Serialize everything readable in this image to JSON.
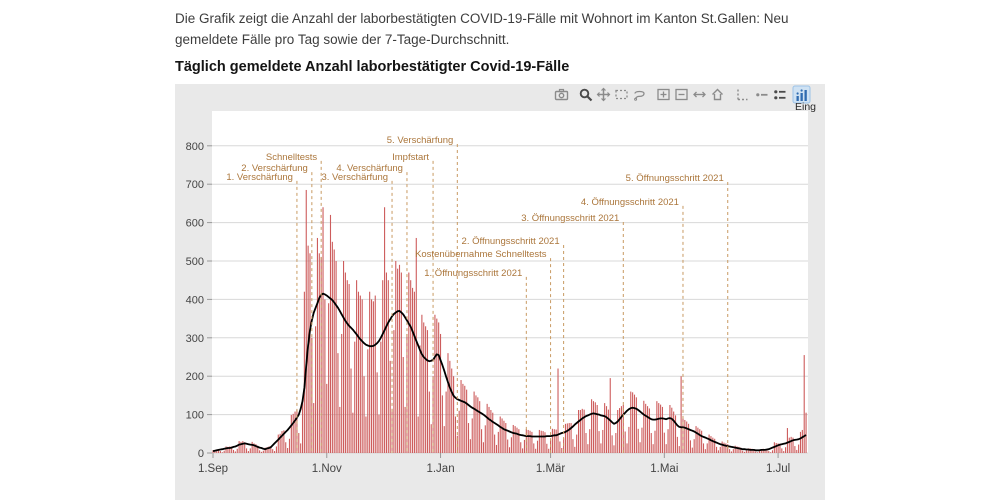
{
  "page": {
    "intro_line1": "Die Grafik zeigt die Anzahl der laborbestätigten COVID-19-Fälle mit Wohnort im Kanton St.Gallen: Neu",
    "intro_line2": "gemeldete Fälle pro Tag sowie der 7-Tage-Durchschnitt.",
    "title": "Täglich gemeldete Anzahl laborbestätigter Covid-19-Fälle"
  },
  "modebar": {
    "icons": [
      {
        "name": "camera"
      },
      {
        "name": "zoom",
        "emph": true
      },
      {
        "name": "pan"
      },
      {
        "name": "box-select"
      },
      {
        "name": "lasso-select"
      },
      {
        "name": "zoom-in"
      },
      {
        "name": "zoom-out"
      },
      {
        "name": "autoscale"
      },
      {
        "name": "reset-home"
      },
      {
        "name": "toggle-spikelines"
      },
      {
        "name": "hover-closest"
      },
      {
        "name": "hover-compare",
        "emph": true
      },
      {
        "name": "plotly-logo",
        "active": true
      }
    ],
    "tooltip_text": "Eing"
  },
  "chart_data": {
    "type": "bar",
    "title": "Täglich gemeldete Anzahl laborbestätigter Covid-19-Fälle",
    "xlabel": "",
    "ylabel": "",
    "x_unit": "days since 1.Sep 2020",
    "x_start_day": 0,
    "x_end_day": 318,
    "x_ticks": {
      "days": [
        0,
        61,
        122,
        181,
        242,
        303
      ],
      "labels": [
        "1.Sep",
        "1.Nov",
        "1.Jan",
        "1.Mär",
        "1.Mai",
        "1.Jul"
      ]
    },
    "ylim": [
      0,
      850
    ],
    "yticks": [
      0,
      100,
      200,
      300,
      400,
      500,
      600,
      700,
      800
    ],
    "grid": true,
    "legend": "none",
    "series": [
      {
        "name": "Neu gemeldete Fälle pro Tag",
        "type": "bar",
        "color": "#cd5c5c",
        "values": [
          7,
          8,
          9,
          10,
          5,
          2,
          6,
          17,
          16,
          17,
          17,
          8,
          4,
          11,
          31,
          29,
          31,
          28,
          12,
          5,
          12,
          29,
          25,
          23,
          19,
          7,
          3,
          6,
          14,
          15,
          17,
          18,
          10,
          5,
          17,
          48,
          50,
          57,
          59,
          28,
          13,
          37,
          99,
          102,
          108,
          113,
          52,
          25,
          140,
          420,
          685,
          540,
          520,
          300,
          130,
          330,
          560,
          520,
          510,
          640,
          400,
          180,
          390,
          620,
          550,
          530,
          500,
          260,
          120,
          310,
          500,
          470,
          450,
          440,
          220,
          105,
          290,
          450,
          420,
          410,
          400,
          200,
          95,
          270,
          420,
          400,
          395,
          410,
          210,
          100,
          290,
          450,
          640,
          470,
          450,
          240,
          115,
          320,
          500,
          480,
          490,
          470,
          250,
          120,
          310,
          470,
          450,
          430,
          420,
          560,
          95,
          280,
          360,
          340,
          330,
          320,
          160,
          75,
          200,
          360,
          350,
          340,
          310,
          150,
          70,
          160,
          260,
          240,
          220,
          200,
          95,
          45,
          110,
          190,
          180,
          175,
          165,
          78,
          36,
          90,
          160,
          150,
          145,
          135,
          62,
          28,
          72,
          128,
          120,
          112,
          105,
          48,
          21,
          55,
          95,
          90,
          84,
          78,
          35,
          15,
          41,
          73,
          70,
          66,
          62,
          28,
          12,
          34,
          62,
          60,
          58,
          55,
          25,
          11,
          32,
          60,
          58,
          57,
          54,
          24,
          11,
          33,
          63,
          62,
          61,
          220,
          30,
          13,
          38,
          76,
          77,
          78,
          78,
          36,
          16,
          48,
          112,
          112,
          115,
          113,
          52,
          23,
          62,
          140,
          135,
          132,
          125,
          57,
          25,
          60,
          130,
          122,
          113,
          195,
          46,
          20,
          52,
          112,
          117,
          122,
          125,
          56,
          25,
          68,
          160,
          158,
          152,
          145,
          63,
          28,
          66,
          136,
          128,
          122,
          116,
          52,
          23,
          58,
          135,
          130,
          126,
          120,
          53,
          23,
          62,
          125,
          118,
          108,
          98,
          42,
          18,
          200,
          90,
          86,
          82,
          76,
          33,
          14,
          36,
          70,
          66,
          62,
          58,
          25,
          10,
          25,
          48,
          44,
          40,
          37,
          16,
          7,
          16,
          30,
          27,
          25,
          23,
          10,
          4,
          10,
          19,
          17,
          16,
          14,
          6,
          3,
          7,
          12,
          12,
          11,
          10,
          4,
          2,
          5,
          10,
          11,
          10,
          10,
          5,
          2,
          7,
          28,
          26,
          25,
          24,
          12,
          5,
          15,
          65,
          40,
          42,
          40,
          18,
          8,
          22,
          55,
          60,
          255,
          105
        ]
      },
      {
        "name": "7-Tage-Durchschnitt",
        "type": "line",
        "color": "#000000",
        "values": [
          5,
          6,
          7,
          8,
          9,
          10,
          11,
          12,
          13,
          13,
          14,
          16,
          17,
          19,
          22,
          23,
          24,
          25,
          24,
          23,
          22,
          21,
          20,
          18,
          16,
          14,
          13,
          11,
          10,
          12,
          13,
          15,
          20,
          25,
          30,
          35,
          40,
          45,
          50,
          55,
          60,
          66,
          72,
          78,
          85,
          92,
          100,
          115,
          135,
          170,
          230,
          280,
          320,
          345,
          365,
          378,
          390,
          404,
          412,
          415,
          413,
          410,
          406,
          402,
          398,
          392,
          385,
          378,
          370,
          361,
          352,
          344,
          337,
          331,
          326,
          321,
          315,
          309,
          302,
          296,
          291,
          286,
          282,
          280,
          278,
          278,
          279,
          282,
          286,
          292,
          300,
          310,
          320,
          330,
          340,
          348,
          356,
          362,
          366,
          369,
          370,
          366,
          361,
          353,
          345,
          337,
          329,
          317,
          305,
          292,
          280,
          268,
          257,
          250,
          245,
          241,
          239,
          240,
          243,
          250,
          257,
          255,
          242,
          229,
          214,
          199,
          184,
          170,
          159,
          149,
          144,
          140,
          138,
          136,
          134,
          132,
          129,
          125,
          121,
          118,
          115,
          112,
          109,
          106,
          103,
          100,
          96,
          92,
          88,
          85,
          81,
          78,
          75,
          72,
          68,
          65,
          62,
          60,
          58,
          56,
          54,
          52,
          51,
          50,
          48,
          47,
          46,
          45,
          44,
          44,
          44,
          43,
          43,
          43,
          43,
          43,
          43,
          43,
          43,
          44,
          44,
          44,
          45,
          46,
          46,
          48,
          50,
          52,
          53,
          55,
          58,
          61,
          65,
          69,
          74,
          78,
          82,
          86,
          90,
          93,
          96,
          98,
          100,
          102,
          103,
          102,
          101,
          100,
          98,
          97,
          96,
          93,
          89,
          85,
          80,
          76,
          78,
          82,
          88,
          94,
          100,
          105,
          110,
          114,
          117,
          118,
          117,
          115,
          112,
          108,
          104,
          100,
          97,
          94,
          91,
          88,
          87,
          87,
          88,
          89,
          90,
          90,
          89,
          88,
          90,
          91,
          89,
          84,
          78,
          72,
          68,
          67,
          67,
          66,
          64,
          62,
          60,
          58,
          56,
          53,
          50,
          47,
          44,
          42,
          40,
          38,
          36,
          33,
          31,
          29,
          27,
          25,
          23,
          22,
          20,
          19,
          18,
          17,
          16,
          15,
          14,
          13,
          12,
          11,
          10,
          10,
          9,
          9,
          8,
          8,
          8,
          7,
          7,
          7,
          8,
          8,
          8,
          9,
          10,
          12,
          14,
          16,
          18,
          20,
          22,
          23,
          24,
          25,
          27,
          29,
          31,
          33,
          34,
          35,
          36,
          38,
          41,
          44,
          47
        ]
      }
    ],
    "annotations": [
      {
        "label": "1. Verschärfung",
        "day": 45,
        "y": 719
      },
      {
        "label": "2. Verschärfung",
        "day": 53,
        "y": 742
      },
      {
        "label": "Schnelltests",
        "day": 58,
        "y": 771
      },
      {
        "label": "3. Verschärfung",
        "day": 96,
        "y": 719
      },
      {
        "label": "4. Verschärfung",
        "day": 104,
        "y": 742
      },
      {
        "label": "Impfstart",
        "day": 118,
        "y": 771
      },
      {
        "label": "5. Verschärfung",
        "day": 131,
        "y": 815
      },
      {
        "label": "1. Öffnungsschritt 2021",
        "day": 168,
        "y": 469
      },
      {
        "label": "Kostenübernahme Schnelltests",
        "day": 181,
        "y": 518
      },
      {
        "label": "2. Öffnungsschritt 2021",
        "day": 188,
        "y": 552
      },
      {
        "label": "3. Öffnungsschritt 2021",
        "day": 220,
        "y": 612
      },
      {
        "label": "4. Öffnungsschritt 2021",
        "day": 252,
        "y": 654
      },
      {
        "label": "5. Öffnungsschritt 2021",
        "day": 276,
        "y": 716
      }
    ],
    "colors": {
      "bar": "#cd5c5c",
      "avg_line": "#000000",
      "annotation_text": "#ab763b",
      "annotation_line": "#c89a62",
      "grid": "#d8d8d8",
      "tick_text": "#444444",
      "tick_mark": "#999999",
      "plot_bg": "#ffffff",
      "paper_bg": "#e9e9e9"
    }
  }
}
